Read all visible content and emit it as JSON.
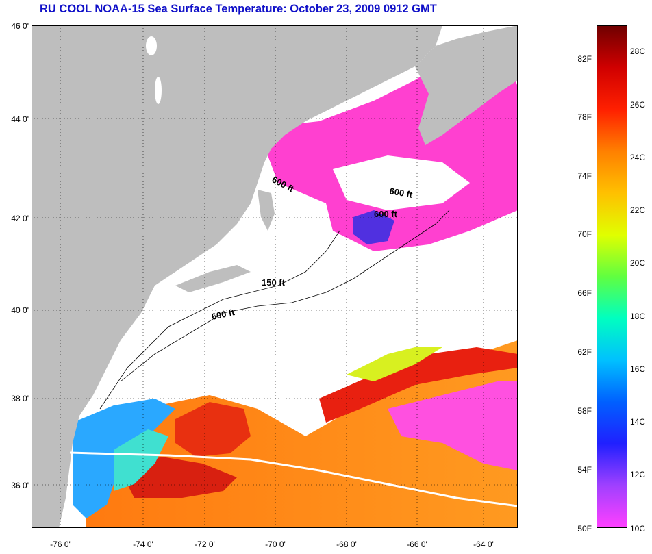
{
  "title": "RU COOL  NOAA-15  Sea Surface Temperature:  October 23, 2009 0912 GMT",
  "lat_labels": [
    "46 0'",
    "44 0'",
    "42 0'",
    "40 0'",
    "38 0'",
    "36 0'"
  ],
  "lon_labels": [
    "-76 0'",
    "-74 0'",
    "-72 0'",
    "-70 0'",
    "-68 0'",
    "-66 0'",
    "-64 0'"
  ],
  "isobath_labels": [
    "600 ft",
    "600 ft",
    "600 ft",
    "150 ft",
    "600 ft"
  ],
  "colorbar": {
    "f_labels": [
      "82F",
      "78F",
      "74F",
      "70F",
      "66F",
      "62F",
      "58F",
      "54F",
      "50F"
    ],
    "c_labels": [
      "28C",
      "26C",
      "24C",
      "22C",
      "20C",
      "18C",
      "16C",
      "14C",
      "12C",
      "10C"
    ],
    "colors": [
      "#ff40ff",
      "#a040ff",
      "#2020ff",
      "#0060ff",
      "#00c0ff",
      "#00ffc0",
      "#60ff40",
      "#e0ff00",
      "#ffc000",
      "#ff8000",
      "#ff2000",
      "#d00000",
      "#700000"
    ]
  },
  "colors": {
    "land": "#bebebe",
    "ocean_clear": "#ffffff",
    "title": "#1010c8"
  }
}
